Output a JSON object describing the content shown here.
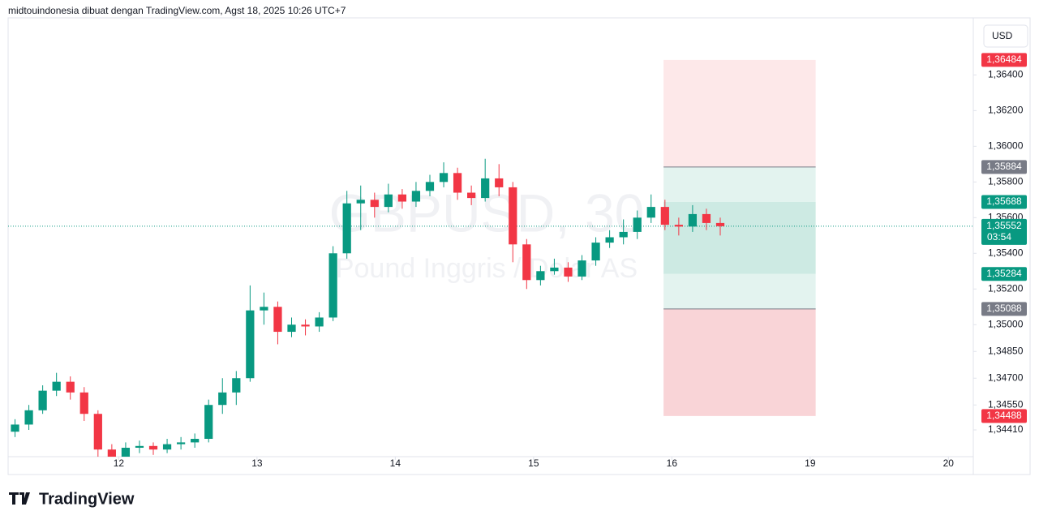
{
  "chart_data": {
    "type": "candlestick",
    "header": "midtouindonesia dibuat dengan TradingView.com, Agst 18, 2025 10:26 UTC+7",
    "currency": "USD",
    "brand": "TradingView",
    "watermark": {
      "symbol": "GBPUSD, 30",
      "description": "Pound Inggris / Dolar AS"
    },
    "up_color": "#089981",
    "down_color": "#f23645",
    "x": [
      11.25,
      11.35,
      11.45,
      11.55,
      11.65,
      11.75,
      11.85,
      11.95,
      12.05,
      12.15,
      12.25,
      12.35,
      12.45,
      12.55,
      12.65,
      12.75,
      12.85,
      12.95,
      13.05,
      13.15,
      13.25,
      13.35,
      13.45,
      13.55,
      13.65,
      13.75,
      13.85,
      13.95,
      14.05,
      14.15,
      14.25,
      14.35,
      14.45,
      14.55,
      14.65,
      14.75,
      14.85,
      14.95,
      15.05,
      15.15,
      15.25,
      15.35,
      15.45,
      15.55,
      15.65,
      15.75,
      15.85,
      15.95,
      16.05,
      16.15,
      16.25,
      16.35
    ],
    "open": [
      1.344,
      1.3444,
      1.3452,
      1.3463,
      1.3468,
      1.3462,
      1.345,
      1.343,
      1.3424,
      1.3431,
      1.3432,
      1.343,
      1.3433,
      1.3434,
      1.3436,
      1.3455,
      1.3462,
      1.347,
      1.3508,
      1.351,
      1.3496,
      1.35,
      1.3499,
      1.3504,
      1.354,
      1.3568,
      1.357,
      1.3566,
      1.3573,
      1.3569,
      1.3575,
      1.358,
      1.3585,
      1.3574,
      1.3571,
      1.3582,
      1.3577,
      1.3545,
      1.3525,
      1.353,
      1.3532,
      1.3527,
      1.3536,
      1.3546,
      1.3549,
      1.3552,
      1.356,
      1.3566,
      1.3556,
      1.3555,
      1.3562,
      1.3557
    ],
    "high": [
      1.3447,
      1.3455,
      1.3466,
      1.3473,
      1.3471,
      1.3465,
      1.3452,
      1.3433,
      1.3434,
      1.3435,
      1.3434,
      1.3436,
      1.3437,
      1.3439,
      1.3458,
      1.347,
      1.3474,
      1.3522,
      1.3518,
      1.3513,
      1.3504,
      1.3503,
      1.3507,
      1.3544,
      1.3575,
      1.3578,
      1.3574,
      1.3579,
      1.3576,
      1.358,
      1.3584,
      1.3591,
      1.3588,
      1.3578,
      1.3593,
      1.359,
      1.358,
      1.3548,
      1.3533,
      1.3537,
      1.3535,
      1.3539,
      1.3549,
      1.3553,
      1.3559,
      1.3564,
      1.3573,
      1.357,
      1.356,
      1.3567,
      1.3565,
      1.356
    ],
    "low": [
      1.3437,
      1.3441,
      1.345,
      1.346,
      1.3458,
      1.3446,
      1.3426,
      1.342,
      1.3422,
      1.3428,
      1.3427,
      1.3428,
      1.343,
      1.3431,
      1.3434,
      1.345,
      1.3455,
      1.3468,
      1.35,
      1.3489,
      1.3493,
      1.3494,
      1.3496,
      1.3502,
      1.3537,
      1.3553,
      1.356,
      1.3563,
      1.3565,
      1.3566,
      1.3572,
      1.3577,
      1.357,
      1.3567,
      1.3569,
      1.3572,
      1.3535,
      1.352,
      1.3522,
      1.3528,
      1.3524,
      1.3525,
      1.3533,
      1.3543,
      1.3545,
      1.3548,
      1.3557,
      1.3553,
      1.355,
      1.3552,
      1.3553,
      1.355
    ],
    "close": [
      1.3444,
      1.3452,
      1.3463,
      1.3468,
      1.3462,
      1.345,
      1.343,
      1.3424,
      1.3431,
      1.3432,
      1.343,
      1.3433,
      1.3434,
      1.3436,
      1.3455,
      1.3462,
      1.347,
      1.3508,
      1.351,
      1.3496,
      1.35,
      1.3499,
      1.3504,
      1.354,
      1.3568,
      1.357,
      1.3566,
      1.3573,
      1.3569,
      1.3575,
      1.358,
      1.3585,
      1.3574,
      1.3571,
      1.3582,
      1.3577,
      1.3545,
      1.3525,
      1.353,
      1.3532,
      1.3527,
      1.3536,
      1.3546,
      1.3549,
      1.3552,
      1.356,
      1.3566,
      1.3556,
      1.3555,
      1.3562,
      1.3557,
      1.35552
    ],
    "xlim": [
      11.2,
      18.18
    ],
    "xticks": [
      12,
      13,
      14,
      15,
      16,
      {
        "value": 17,
        "label": "19"
      },
      {
        "value": 18,
        "label": "20"
      }
    ],
    "ylim": [
      1.3426,
      1.3672
    ],
    "yticks": [
      {
        "value": 1.364,
        "label": "1,36400"
      },
      {
        "value": 1.362,
        "label": "1,36200"
      },
      {
        "value": 1.36,
        "label": "1,36000"
      },
      {
        "value": 1.358,
        "label": "1,35800"
      },
      {
        "value": 1.356,
        "label": "1,35600"
      },
      {
        "value": 1.354,
        "label": "1,35400"
      },
      {
        "value": 1.352,
        "label": "1,35200"
      },
      {
        "value": 1.35,
        "label": "1,35000"
      },
      {
        "value": 1.3485,
        "label": "1,34850"
      },
      {
        "value": 1.347,
        "label": "1,34700"
      },
      {
        "value": 1.3455,
        "label": "1,34550"
      },
      {
        "value": 1.3441,
        "label": "1,34410"
      }
    ],
    "last_price": {
      "value": 1.35552,
      "label": "1,35552",
      "countdown": "03:54",
      "color": "#089981"
    },
    "position": {
      "x": [
        15.94,
        17.04
      ],
      "levels": [
        {
          "value": 1.36484,
          "label": "1,36484",
          "color": "#f23645"
        },
        {
          "value": 1.35884,
          "label": "1,35884",
          "color": "#787b86"
        },
        {
          "value": 1.35688,
          "label": "1,35688",
          "color": "#089981"
        },
        {
          "value": 1.35284,
          "label": "1,35284",
          "color": "#089981"
        },
        {
          "value": 1.35088,
          "label": "1,35088",
          "color": "#787b86"
        },
        {
          "value": 1.34488,
          "label": "1,34488",
          "color": "#f23645"
        }
      ]
    }
  }
}
